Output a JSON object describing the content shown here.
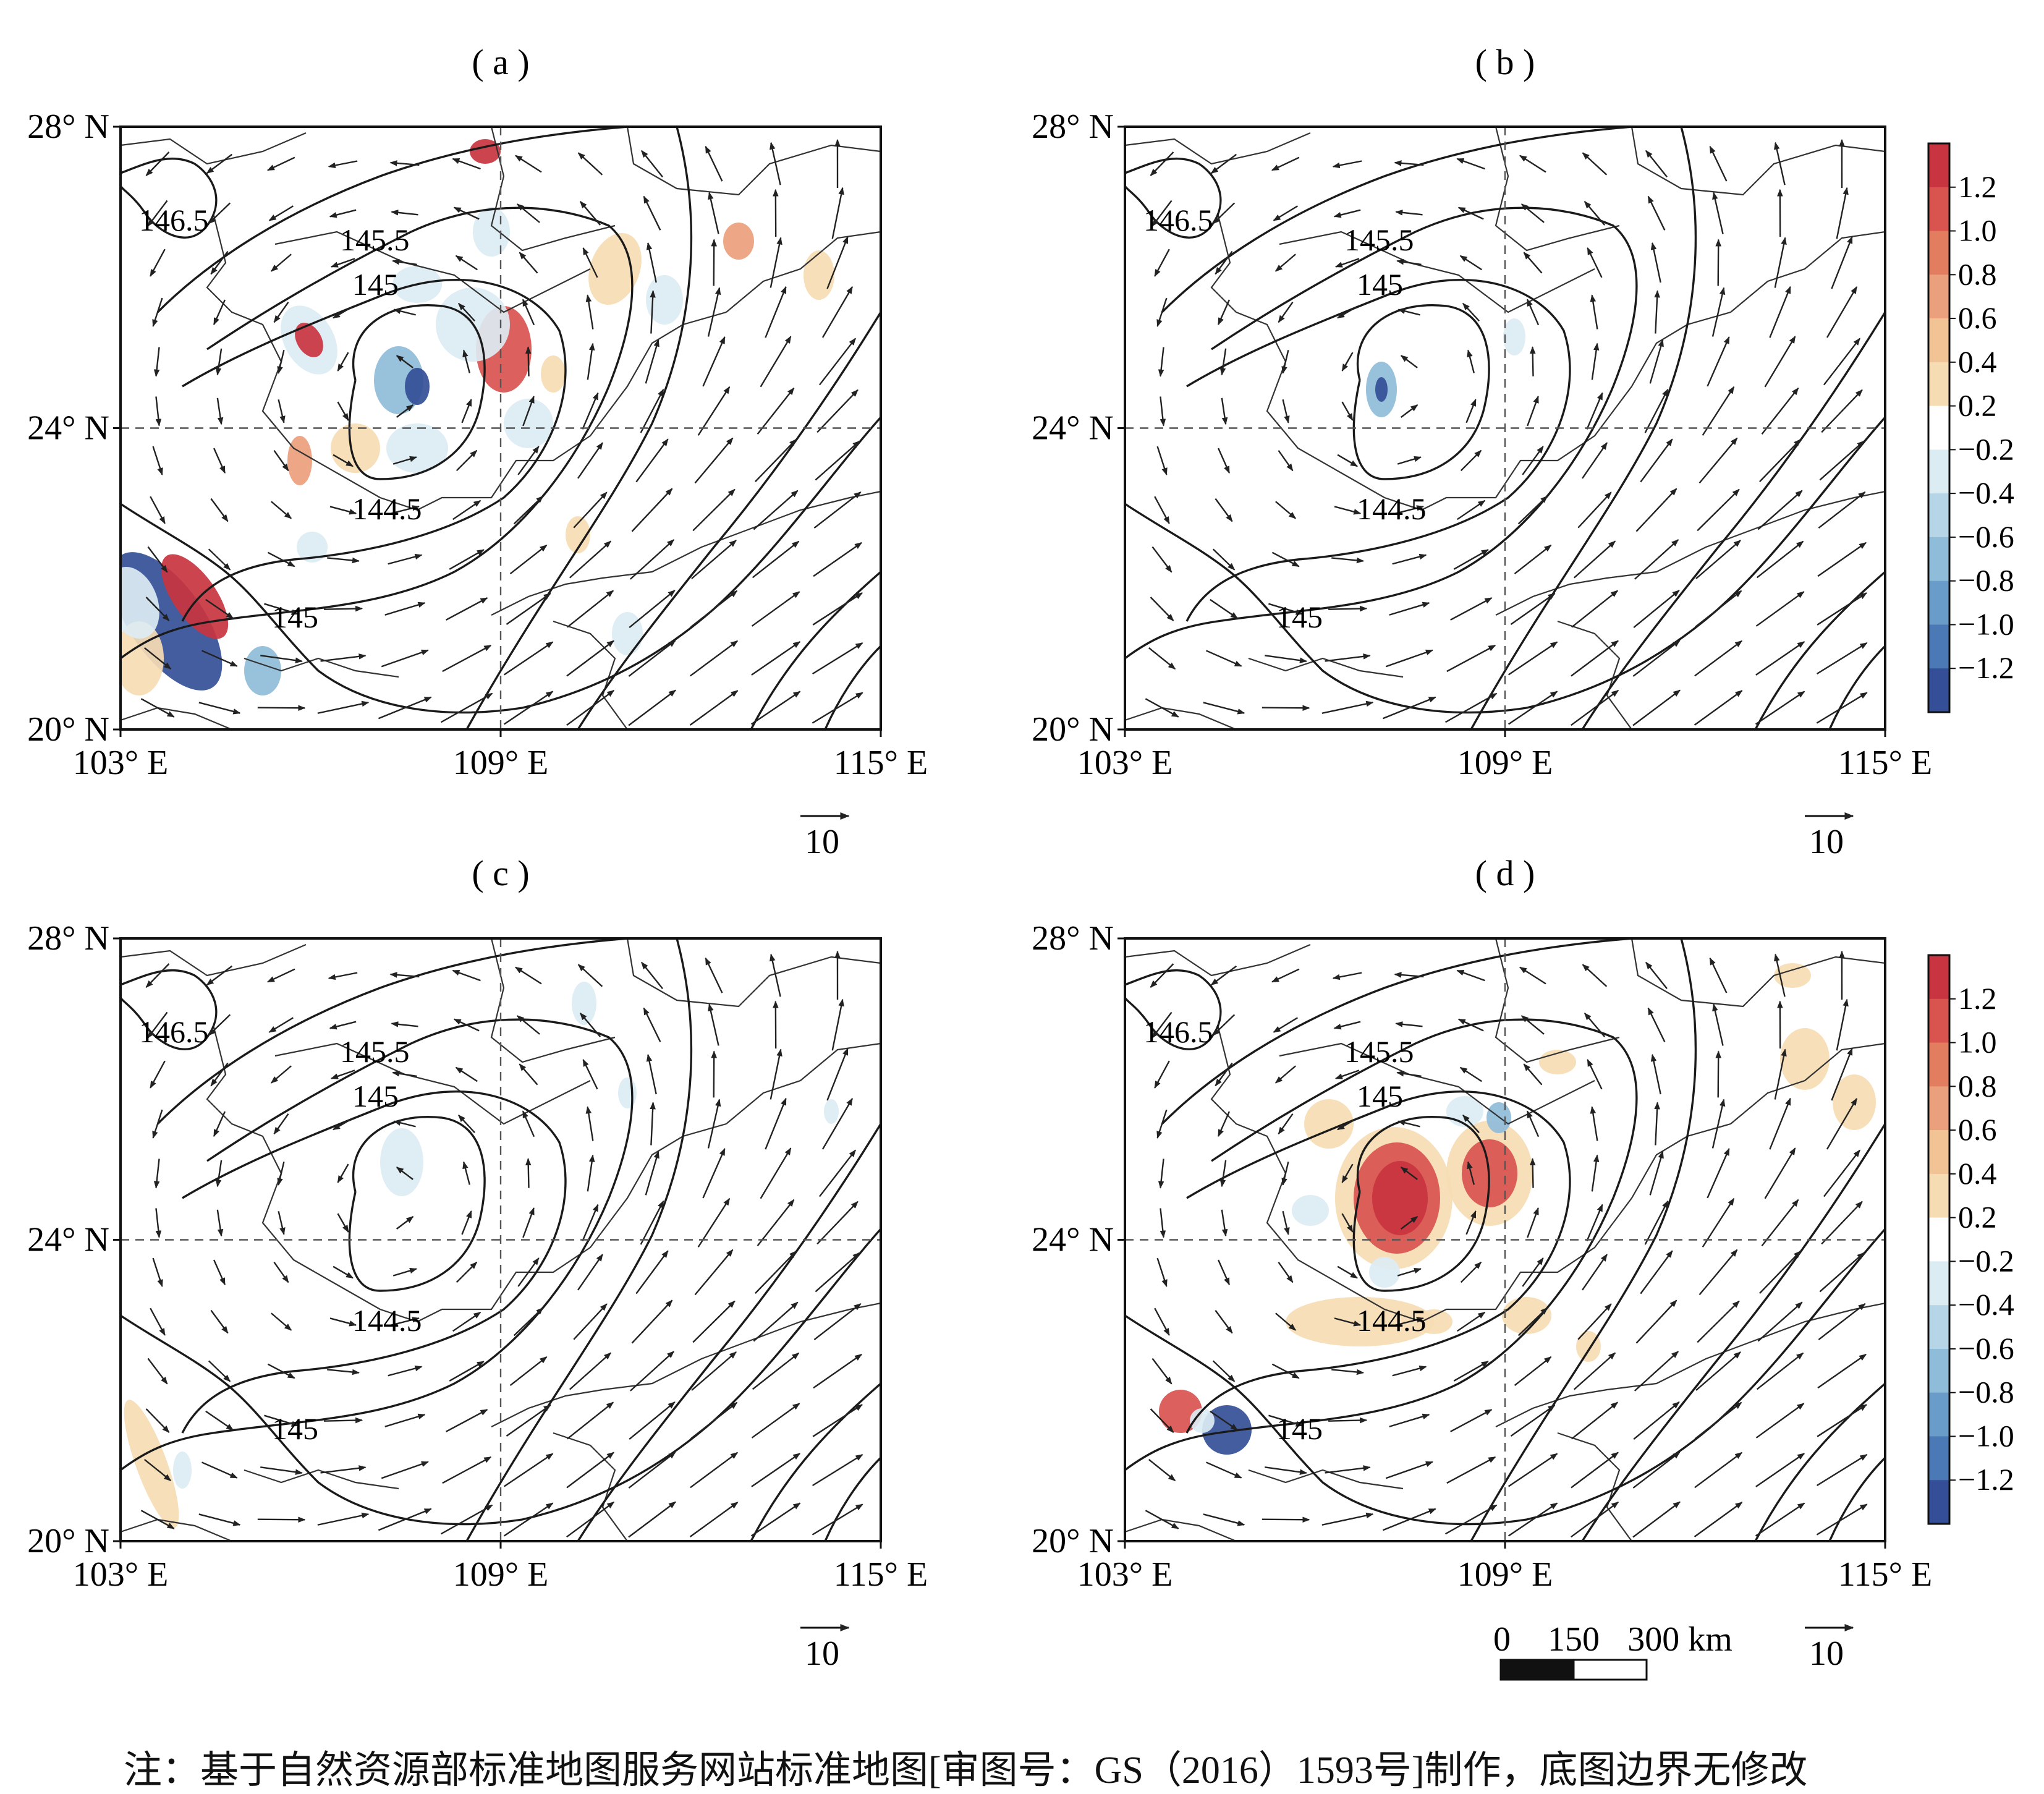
{
  "panels": [
    {
      "id": "a",
      "label": "( a )",
      "colorbar": false
    },
    {
      "id": "b",
      "label": "( b )",
      "colorbar": true
    },
    {
      "id": "c",
      "label": "( c )",
      "colorbar": false
    },
    {
      "id": "d",
      "label": "( d )",
      "colorbar": true
    }
  ],
  "axes": {
    "lat_ticks": [
      "28° N",
      "24° N",
      "20° N"
    ],
    "lon_ticks": [
      "103° E",
      "109° E",
      "115° E"
    ],
    "lat_range": [
      20,
      28
    ],
    "lon_range": [
      103,
      115
    ]
  },
  "contour_labels": [
    "146.5",
    "145.5",
    "145",
    "144.5",
    "145"
  ],
  "vector_reference": "10",
  "colorbar": {
    "ticks": [
      "1.2",
      "1.0",
      "0.8",
      "0.6",
      "0.4",
      "0.2",
      "−0.2",
      "−0.4",
      "−0.6",
      "−0.8",
      "−1.0",
      "−1.2"
    ],
    "colors": [
      "#c8343f",
      "#d9534f",
      "#e27d60",
      "#eba07d",
      "#f2c394",
      "#f6dcb3",
      "#ffffff",
      "#dcecf3",
      "#b6d6e8",
      "#8fbcd9",
      "#6a9cc9",
      "#4a79b6",
      "#344f97"
    ]
  },
  "scale_bar": {
    "labels": [
      "0",
      "150",
      "300 km"
    ]
  },
  "note": "注：基于自然资源部标准地图服务网站标准地图[审图号：GS（2016）1593号]制作，底图边界无修改"
}
